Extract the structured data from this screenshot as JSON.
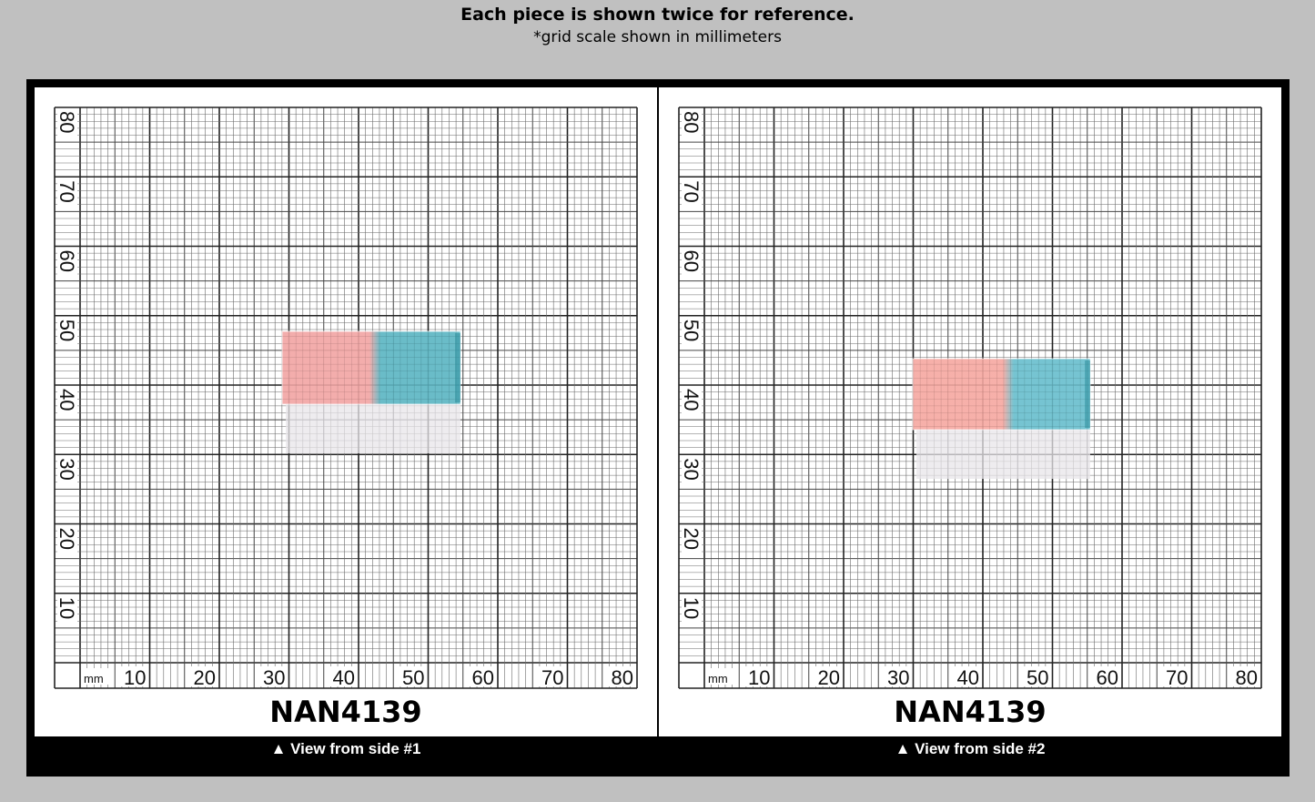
{
  "header": {
    "title": "Each piece is shown twice for reference.",
    "subtitle": "*grid scale shown in millimeters"
  },
  "grid": {
    "unit_label": "mm",
    "x_ticks": [
      "10",
      "20",
      "30",
      "40",
      "50",
      "60",
      "70",
      "80"
    ],
    "y_ticks": [
      "10",
      "20",
      "30",
      "40",
      "50",
      "60",
      "70",
      "80"
    ]
  },
  "panels": [
    {
      "product_id": "NAN4139",
      "caption": "▲ View from side #1",
      "piece_colors": {
        "pink": "#f2a7a6",
        "blue": "#5fb7c4"
      }
    },
    {
      "product_id": "NAN4139",
      "caption": "▲ View from side #2",
      "piece_colors": {
        "pink": "#f6aaa3",
        "blue": "#6cc0ce"
      }
    }
  ]
}
